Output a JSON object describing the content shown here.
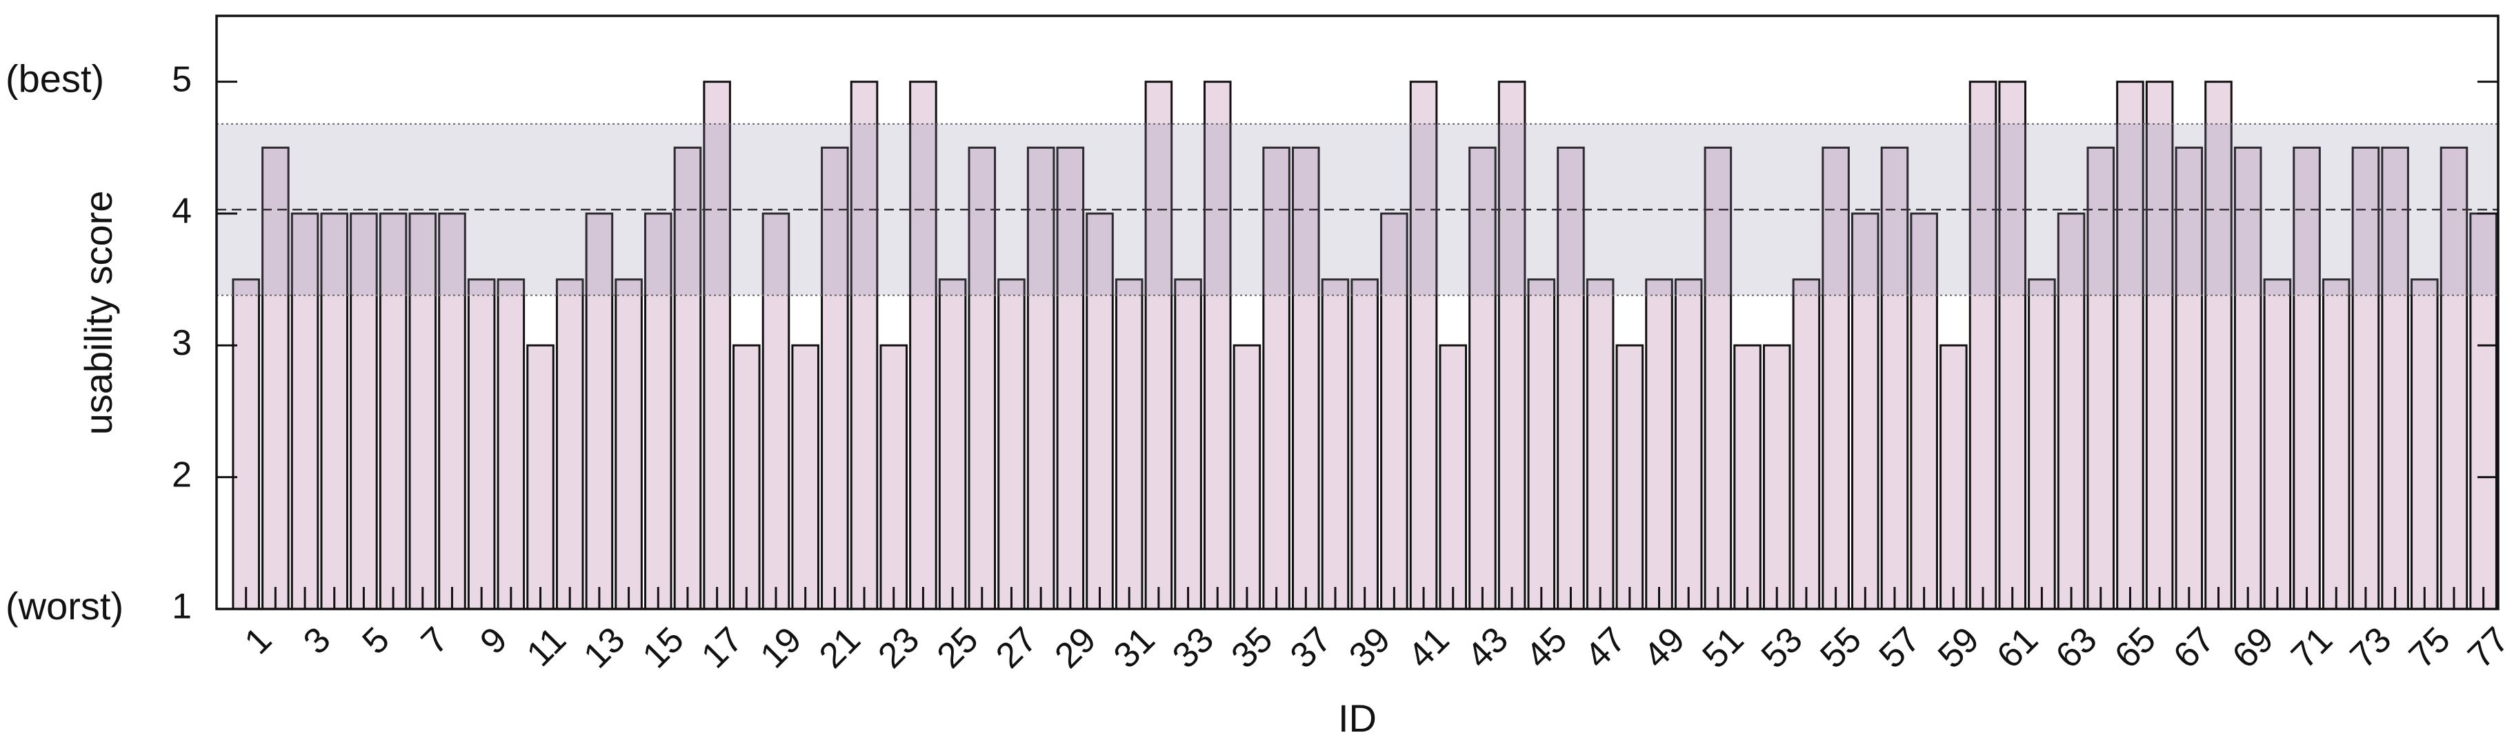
{
  "chart_data": {
    "type": "bar",
    "xlabel": "ID",
    "ylabel": "usability score",
    "categories": [
      "1",
      null,
      "3",
      null,
      "5",
      null,
      "7",
      null,
      "9",
      null,
      "11",
      null,
      "13",
      null,
      "15",
      null,
      "17",
      null,
      "19",
      null,
      "21",
      null,
      "23",
      null,
      "25",
      null,
      "27",
      null,
      "29",
      null,
      "31",
      null,
      "33",
      null,
      "35",
      null,
      "37",
      null,
      "39",
      null,
      "41",
      null,
      "43",
      null,
      "45",
      null,
      "47",
      null,
      "49",
      null,
      "51",
      null,
      "53",
      null,
      "55",
      null,
      "57",
      null,
      "59",
      null,
      "61",
      null,
      "63",
      null,
      "65",
      null,
      "67",
      null,
      "69",
      null,
      "71",
      null,
      "73",
      null,
      "75",
      null,
      "77"
    ],
    "values": [
      3.5,
      4.5,
      4,
      4,
      4,
      4,
      4,
      4,
      3.5,
      3.5,
      3,
      3.5,
      4,
      3.5,
      4,
      4.5,
      5,
      3,
      4,
      3,
      4.5,
      5,
      3,
      5,
      3.5,
      4.5,
      3.5,
      4.5,
      4.5,
      4,
      3.5,
      5,
      3.5,
      5,
      3,
      4.5,
      4.5,
      3.5,
      3.5,
      4,
      5,
      3,
      4.5,
      5,
      3.5,
      4.5,
      3.5,
      3,
      3.5,
      3.5,
      4.5,
      3,
      3,
      3.5,
      4.5,
      4,
      4.5,
      4,
      3,
      5,
      5,
      3.5,
      4,
      4.5,
      5,
      5,
      4.5,
      5,
      4.5,
      3.5,
      4.5,
      3.5,
      4.5,
      4.5,
      3.5,
      4.5,
      4
    ],
    "color": "#ead8e4",
    "ylim": [
      1,
      5.5
    ],
    "yticks": [
      1,
      2,
      3,
      4,
      5
    ],
    "annotations": [
      {
        "text": "(best)",
        "y": 5
      },
      {
        "text": "(worst)",
        "y": 1
      }
    ],
    "mean": 4.03,
    "band": [
      3.38,
      4.68
    ],
    "band_color": "#8a8aa6"
  }
}
